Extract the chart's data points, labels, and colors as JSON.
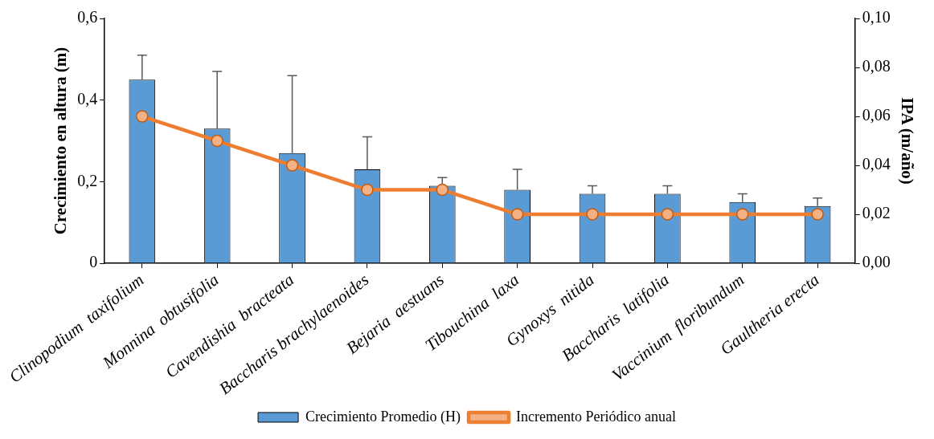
{
  "chart_data": {
    "type": "bar",
    "categories": [
      "Clinopodium  taxifolium",
      "Monnina  obtusifolia",
      "Cavendishia  bracteata",
      "Baccharis brachylaenoides",
      "Bejaria  aestuans",
      "Tibouchina  laxa",
      "Gynoxys  nitida",
      "Baccharis  latifolia",
      "Vaccinium  floribundum",
      "Gaultheria erecta"
    ],
    "series": [
      {
        "name": "Crecimiento Promedio (H)",
        "color": "#5b9bd5",
        "values": [
          0.45,
          0.33,
          0.27,
          0.23,
          0.19,
          0.18,
          0.17,
          0.17,
          0.15,
          0.14
        ],
        "errors": [
          [
            0.45,
            0.51
          ],
          [
            0.33,
            0.47
          ],
          [
            0.27,
            0.46
          ],
          [
            0.23,
            0.31
          ],
          [
            0.19,
            0.21
          ],
          [
            0.18,
            0.23
          ],
          [
            0.17,
            0.19
          ],
          [
            0.17,
            0.19
          ],
          [
            0.15,
            0.17
          ],
          [
            0.14,
            0.16
          ]
        ]
      },
      {
        "name": "Incremento Periódico anual",
        "type": "line",
        "axis": "y2",
        "color": "#ed7d31",
        "marker": "circle",
        "values": [
          0.06,
          0.05,
          0.04,
          0.03,
          0.03,
          0.02,
          0.02,
          0.02,
          0.02,
          0.02
        ]
      }
    ],
    "ylabel": "Crecimiento en altura (m)",
    "y2label": "IPA (m/año)",
    "ylim": [
      0,
      0.6
    ],
    "yticks": [
      {
        "value": 0,
        "label": "0"
      },
      {
        "value": 0.2,
        "label": "0,2"
      },
      {
        "value": 0.4,
        "label": "0,4"
      },
      {
        "value": 0.6,
        "label": "0,6"
      }
    ],
    "y2lim": [
      0,
      0.1
    ],
    "y2ticks": [
      {
        "value": 0,
        "label": "0,00"
      },
      {
        "value": 0.02,
        "label": "0,02"
      },
      {
        "value": 0.04,
        "label": "0,04"
      },
      {
        "value": 0.06,
        "label": "0,06"
      },
      {
        "value": 0.08,
        "label": "0,08"
      },
      {
        "value": 0.1,
        "label": "0,10"
      }
    ],
    "grid": false,
    "legend": "bottom"
  }
}
